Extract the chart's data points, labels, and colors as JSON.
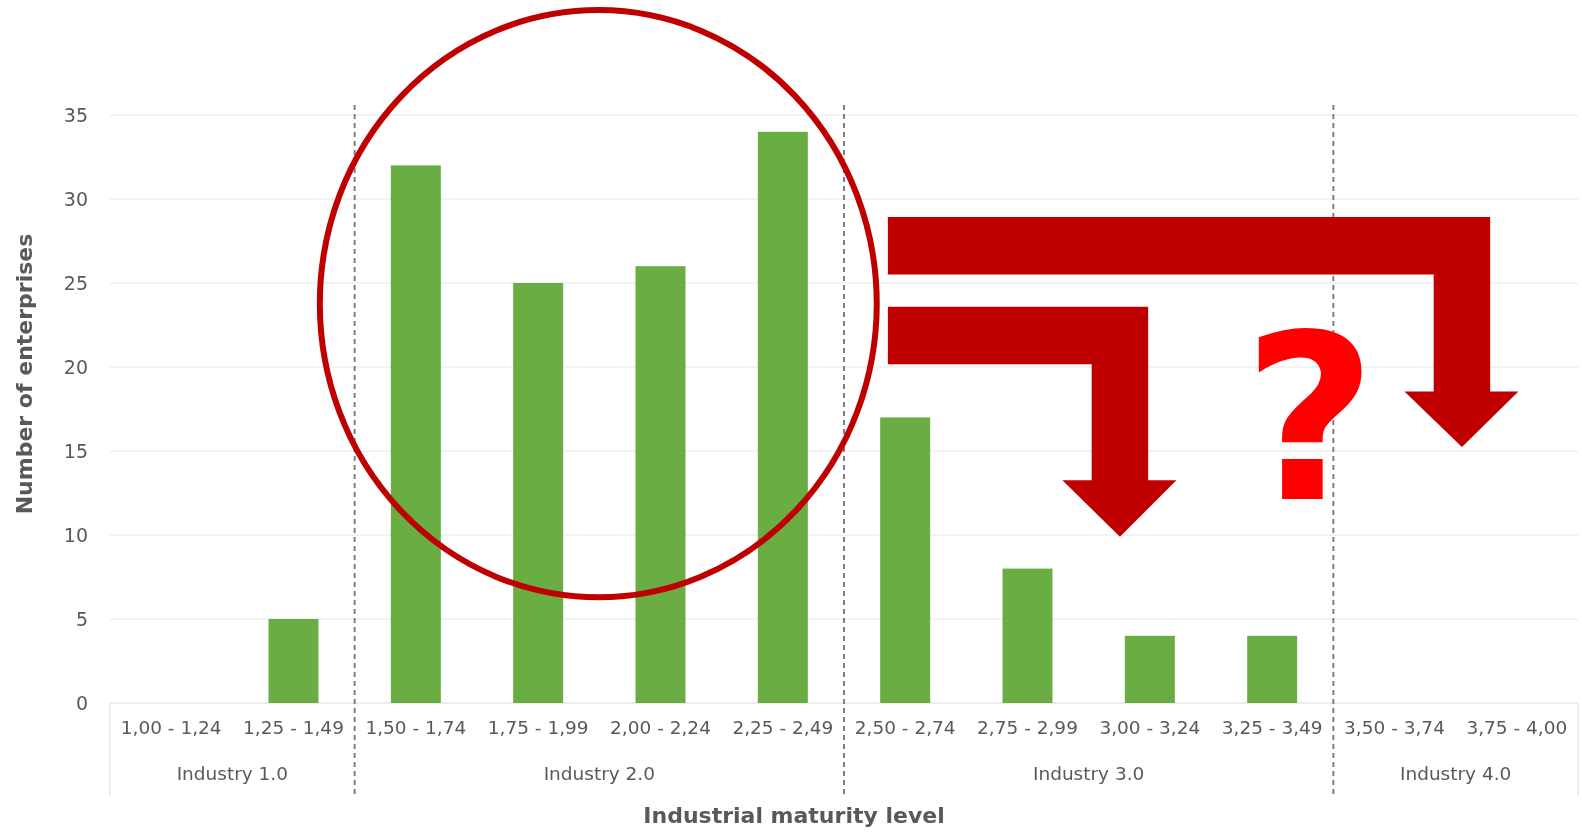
{
  "chart_data": {
    "type": "bar",
    "xlabel": "Industrial maturity level",
    "ylabel": "Number of enterprises",
    "categories": [
      "1,00 - 1,24",
      "1,25 - 1,49",
      "1,50 - 1,74",
      "1,75 - 1,99",
      "2,00 - 2,24",
      "2,25 - 2,49",
      "2,50 - 2,74",
      "2,75 - 2,99",
      "3,00 - 3,24",
      "3,25 - 3,49",
      "3,50 - 3,74",
      "3,75 - 4,00"
    ],
    "values": [
      0,
      5,
      32,
      25,
      26,
      34,
      17,
      8,
      4,
      4,
      0,
      0
    ],
    "color": "#6aad42",
    "ylim": [
      0,
      35
    ],
    "yticks": [
      0,
      5,
      10,
      15,
      20,
      25,
      30,
      35
    ],
    "grid": "y",
    "annotations": [
      "Industry 1.0",
      "Industry 2.0",
      "Industry 3.0",
      "Industry 4.0",
      "?"
    ]
  }
}
